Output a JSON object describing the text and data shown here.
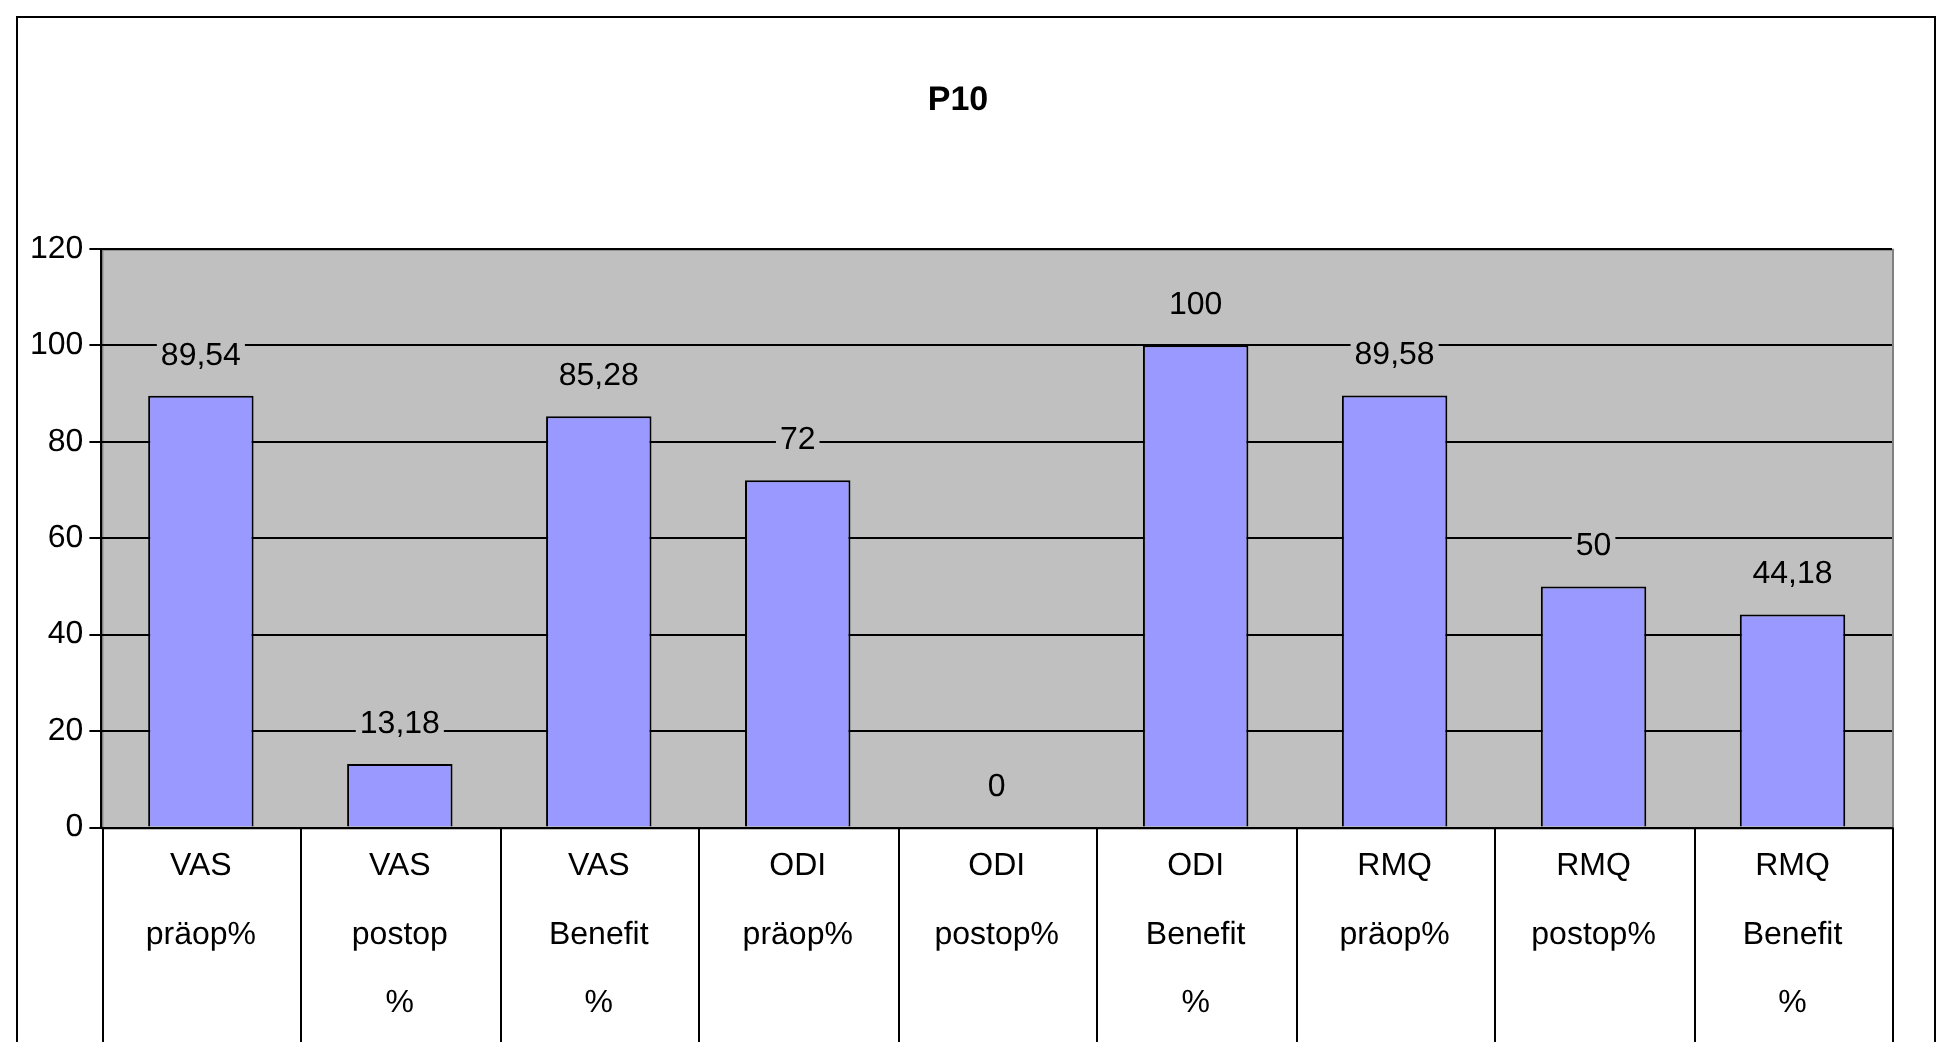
{
  "chart_data": {
    "type": "bar",
    "title": "P10",
    "categories": [
      "VAS präop%",
      "VAS postop %",
      "VAS Benefit %",
      "ODI präop%",
      "ODI postop%",
      "ODI Benefit %",
      "RMQ präop%",
      "RMQ postop%",
      "RMQ Benefit %"
    ],
    "values": [
      89.54,
      13.18,
      85.28,
      72,
      0,
      100,
      89.58,
      50,
      44.18
    ],
    "value_labels": [
      "89,54",
      "13,18",
      "85,28",
      "72",
      "0",
      "100",
      "89,58",
      "50",
      "44,18"
    ],
    "color": "#9999ff",
    "ylim": [
      0,
      120
    ],
    "yticks": [
      0,
      20,
      40,
      60,
      80,
      100,
      120
    ],
    "grid": "y",
    "legend": false
  }
}
